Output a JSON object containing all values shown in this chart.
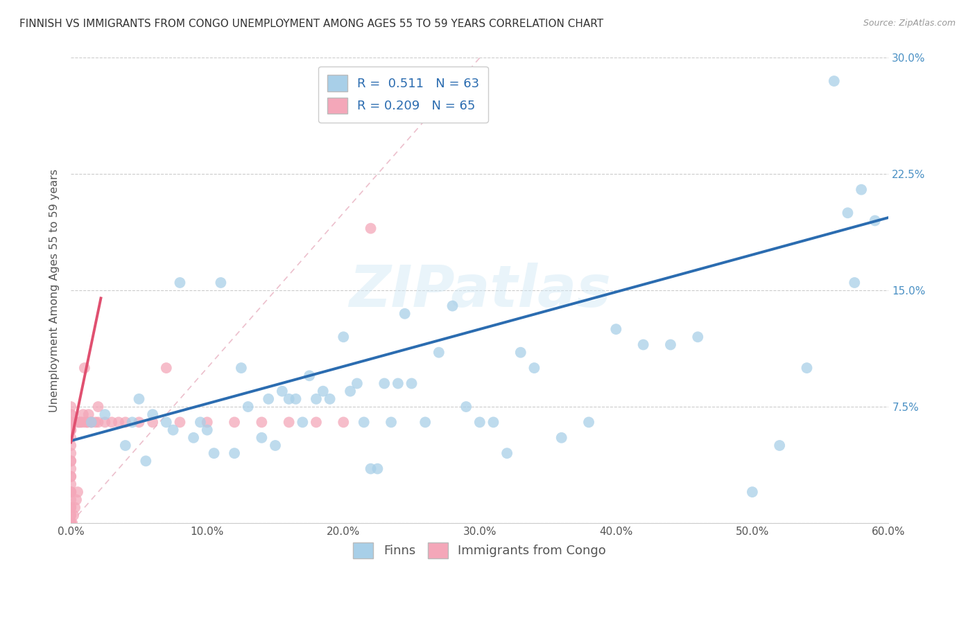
{
  "title": "FINNISH VS IMMIGRANTS FROM CONGO UNEMPLOYMENT AMONG AGES 55 TO 59 YEARS CORRELATION CHART",
  "source": "Source: ZipAtlas.com",
  "ylabel": "Unemployment Among Ages 55 to 59 years",
  "xlim": [
    0,
    0.6
  ],
  "ylim": [
    0,
    0.3
  ],
  "xticks": [
    0.0,
    0.1,
    0.2,
    0.3,
    0.4,
    0.5,
    0.6
  ],
  "yticks": [
    0.0,
    0.075,
    0.15,
    0.225,
    0.3
  ],
  "xtick_labels": [
    "0.0%",
    "10.0%",
    "20.0%",
    "30.0%",
    "40.0%",
    "50.0%",
    "60.0%"
  ],
  "ytick_labels_right": [
    "",
    "7.5%",
    "15.0%",
    "22.5%",
    "30.0%"
  ],
  "watermark": "ZIPatlas",
  "finns_color": "#a8cfe8",
  "congo_color": "#f4a7b9",
  "finns_line_color": "#2b6cb0",
  "congo_line_color": "#e05070",
  "ref_line_color": "#e8b0c0",
  "R_finns": 0.511,
  "N_finns": 63,
  "R_congo": 0.209,
  "N_congo": 65,
  "finns_x": [
    0.015,
    0.025,
    0.04,
    0.045,
    0.05,
    0.055,
    0.06,
    0.07,
    0.075,
    0.08,
    0.09,
    0.095,
    0.1,
    0.105,
    0.11,
    0.12,
    0.125,
    0.13,
    0.14,
    0.145,
    0.15,
    0.155,
    0.16,
    0.165,
    0.17,
    0.175,
    0.18,
    0.185,
    0.19,
    0.2,
    0.205,
    0.21,
    0.215,
    0.22,
    0.225,
    0.23,
    0.235,
    0.24,
    0.245,
    0.25,
    0.26,
    0.27,
    0.28,
    0.29,
    0.3,
    0.31,
    0.32,
    0.33,
    0.34,
    0.36,
    0.38,
    0.4,
    0.42,
    0.44,
    0.46,
    0.5,
    0.52,
    0.54,
    0.56,
    0.57,
    0.575,
    0.58,
    0.59
  ],
  "finns_y": [
    0.065,
    0.07,
    0.05,
    0.065,
    0.08,
    0.04,
    0.07,
    0.065,
    0.06,
    0.155,
    0.055,
    0.065,
    0.06,
    0.045,
    0.155,
    0.045,
    0.1,
    0.075,
    0.055,
    0.08,
    0.05,
    0.085,
    0.08,
    0.08,
    0.065,
    0.095,
    0.08,
    0.085,
    0.08,
    0.12,
    0.085,
    0.09,
    0.065,
    0.035,
    0.035,
    0.09,
    0.065,
    0.09,
    0.135,
    0.09,
    0.065,
    0.11,
    0.14,
    0.075,
    0.065,
    0.065,
    0.045,
    0.11,
    0.1,
    0.055,
    0.065,
    0.125,
    0.115,
    0.115,
    0.12,
    0.02,
    0.05,
    0.1,
    0.285,
    0.2,
    0.155,
    0.215,
    0.195
  ],
  "congo_x": [
    0.0,
    0.0,
    0.0,
    0.0,
    0.0,
    0.0,
    0.0,
    0.0,
    0.0,
    0.0,
    0.0,
    0.0,
    0.0,
    0.0,
    0.0,
    0.0,
    0.0,
    0.0,
    0.0,
    0.0,
    0.0,
    0.0,
    0.0,
    0.0,
    0.0,
    0.0,
    0.0,
    0.0,
    0.0,
    0.0,
    0.001,
    0.002,
    0.003,
    0.004,
    0.005,
    0.005,
    0.006,
    0.007,
    0.008,
    0.009,
    0.01,
    0.01,
    0.012,
    0.012,
    0.013,
    0.015,
    0.015,
    0.018,
    0.02,
    0.02,
    0.025,
    0.03,
    0.035,
    0.04,
    0.05,
    0.06,
    0.07,
    0.08,
    0.1,
    0.12,
    0.14,
    0.16,
    0.18,
    0.2,
    0.22
  ],
  "congo_y": [
    0.0,
    0.0,
    0.0,
    0.005,
    0.005,
    0.01,
    0.01,
    0.015,
    0.02,
    0.02,
    0.02,
    0.025,
    0.03,
    0.03,
    0.035,
    0.04,
    0.04,
    0.045,
    0.05,
    0.055,
    0.06,
    0.06,
    0.06,
    0.065,
    0.065,
    0.065,
    0.065,
    0.07,
    0.07,
    0.075,
    0.0,
    0.005,
    0.01,
    0.015,
    0.02,
    0.065,
    0.065,
    0.065,
    0.065,
    0.07,
    0.065,
    0.1,
    0.065,
    0.065,
    0.07,
    0.065,
    0.065,
    0.065,
    0.065,
    0.075,
    0.065,
    0.065,
    0.065,
    0.065,
    0.065,
    0.065,
    0.1,
    0.065,
    0.065,
    0.065,
    0.065,
    0.065,
    0.065,
    0.065,
    0.19
  ],
  "finns_trend_x0": 0.0,
  "finns_trend_x1": 0.6,
  "finns_trend_y0": 0.053,
  "finns_trend_y1": 0.197,
  "congo_trend_x0": 0.0,
  "congo_trend_x1": 0.022,
  "congo_trend_y0": 0.052,
  "congo_trend_y1": 0.145,
  "ref_line_x0": 0.0,
  "ref_line_x1": 0.3,
  "ref_line_y0": 0.0,
  "ref_line_y1": 0.3
}
